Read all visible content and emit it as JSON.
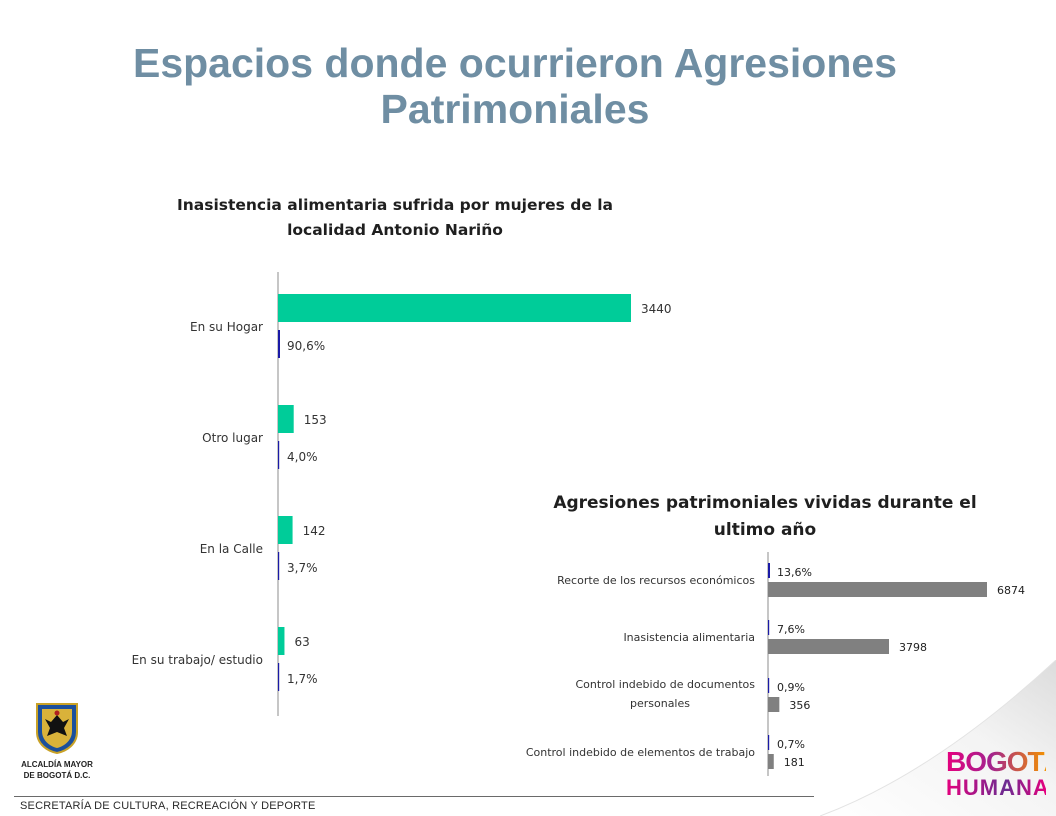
{
  "page": {
    "title": "Espacios donde ocurrieron Agresiones Patrimoniales",
    "footer": "SECRETARÍA DE CULTURA, RECREACIÓN Y DEPORTE",
    "logo_left_caption_1": "ALCALDÍA MAYOR",
    "logo_left_caption_2": "DE BOGOTÁ D.C.",
    "logo_right_line1": "BOGOTÁ",
    "logo_right_line2": "HUMANA"
  },
  "colors": {
    "title": "#6f8ea3",
    "count_bar_chart1": "#00cc99",
    "pct_bar": "#1a1aa6",
    "count_bar_chart2": "#808080"
  },
  "chart_data": [
    {
      "type": "bar",
      "orientation": "horizontal",
      "title": "Inasistencia alimentaria sufrida por mujeres de la localidad Antonio Nariño",
      "categories": [
        "En su Hogar",
        "Otro lugar",
        "En la Calle",
        "En su trabajo/ estudio"
      ],
      "series": [
        {
          "values": [
            3440,
            153,
            142,
            63
          ],
          "labels": [
            "3440",
            "153",
            "142",
            "63"
          ]
        },
        {
          "values": [
            90.6,
            4.0,
            3.7,
            1.7
          ],
          "labels": [
            "90,6%",
            "4,0%",
            "3,7%",
            "1,7%"
          ]
        }
      ],
      "grid": false,
      "legend": "none"
    },
    {
      "type": "bar",
      "orientation": "horizontal",
      "title": "Agresiones patrimoniales vividas durante el ultimo año",
      "categories": [
        "Recorte de los recursos económicos",
        "Inasistencia alimentaria",
        "Control indebido de documentos personales",
        "Control indebido de elementos de trabajo"
      ],
      "category_lines": [
        [
          "Recorte de los recursos económicos"
        ],
        [
          "Inasistencia alimentaria"
        ],
        [
          "Control indebido de documentos",
          "personales"
        ],
        [
          "Control indebido de elementos de trabajo"
        ]
      ],
      "series": [
        {
          "values": [
            13.6,
            7.6,
            0.9,
            0.7
          ],
          "labels": [
            "13,6%",
            "7,6%",
            "0,9%",
            "0,7%"
          ]
        },
        {
          "values": [
            6874,
            3798,
            356,
            181
          ],
          "labels": [
            "6874",
            "3798",
            "356",
            "181"
          ]
        }
      ],
      "grid": false,
      "legend": "none"
    }
  ]
}
